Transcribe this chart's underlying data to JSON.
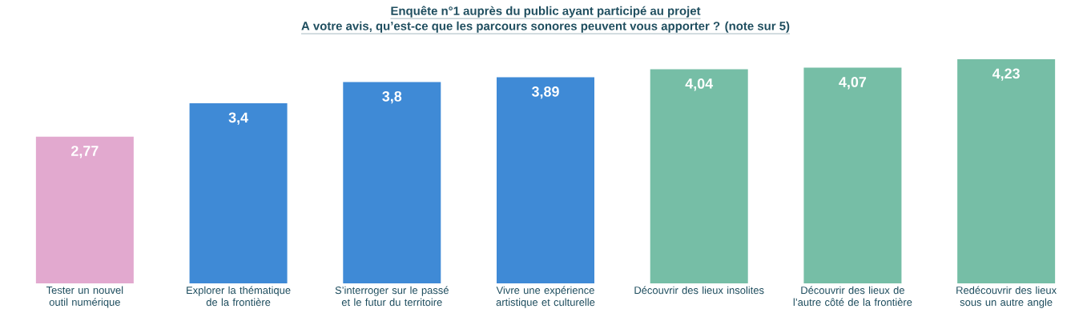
{
  "chart_data": {
    "type": "bar",
    "title": "Enquête n°1 auprès du public ayant participé au projet",
    "subtitle": "A votre avis, qu’est-ce que les parcours sonores peuvent vous apporter ? (note sur 5)",
    "categories": [
      "Tester un nouvel outil numérique",
      "Explorer la thématique de la frontière",
      "S’interroger sur le passé et le futur du territoire",
      "Vivre une expérience artistique et culturelle",
      "Découvrir des lieux insolites",
      "Découvrir des lieux de l’autre côté de la frontière",
      "Redécouvrir des lieux sous un autre angle"
    ],
    "values": [
      2.77,
      3.4,
      3.8,
      3.89,
      4.04,
      4.07,
      4.23
    ],
    "value_labels": [
      "2,77",
      "3,4",
      "3,8",
      "3,89",
      "4,04",
      "4,07",
      "4,23"
    ],
    "colors": [
      "#e2a9cf",
      "#3f8ad6",
      "#3f8ad6",
      "#3f8ad6",
      "#76bea6",
      "#76bea6",
      "#76bea6"
    ]
  }
}
